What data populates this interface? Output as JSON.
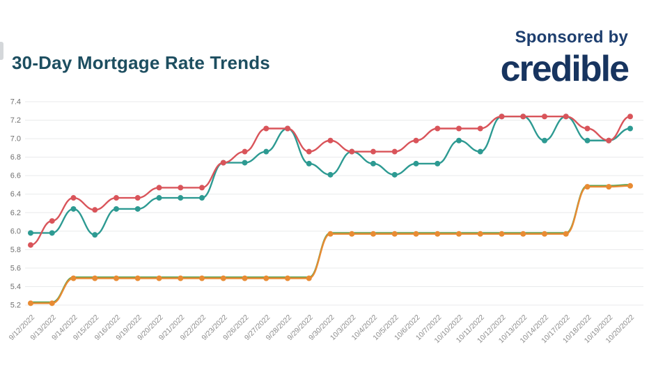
{
  "page": {
    "background": "#ffffff"
  },
  "header": {
    "title": "30-Day Mortgage Rate Trends",
    "title_color": "#1d4e60",
    "sponsored_by": "Sponsored by",
    "sponsor_name": "credible",
    "sponsor_color": "#17345f"
  },
  "chart_data": {
    "type": "line",
    "title": "30-Day Mortgage Rate Trends",
    "xlabel": "",
    "ylabel": "",
    "ylim": [
      5.2,
      7.4
    ],
    "yticks": [
      "7.4",
      "7.2",
      "7.0",
      "6.8",
      "6.6",
      "6.4",
      "6.2",
      "6.0",
      "5.8",
      "5.6",
      "5.4",
      "5.2"
    ],
    "grid": "horizontal",
    "gridline_color": "#e9eaeb",
    "ytick_label_color": "#6f6f6f",
    "xtick_label_color": "#8c8c8c",
    "legend": "none",
    "marker": "circle",
    "x_label_rotation": -45,
    "categories": [
      "9/12/2022",
      "9/13/2022",
      "9/14/2022",
      "9/15/2022",
      "9/16/2022",
      "9/19/2022",
      "9/20/2022",
      "9/21/2022",
      "9/22/2022",
      "9/23/2022",
      "9/26/2022",
      "9/27/2022",
      "9/28/2022",
      "9/29/2022",
      "9/30/2022",
      "10/3/2022",
      "10/4/2022",
      "10/5/2022",
      "10/6/2022",
      "10/7/2022",
      "10/10/2022",
      "10/11/2022",
      "10/12/2022",
      "10/13/2022",
      "10/14/2022",
      "10/17/2022",
      "10/18/2022",
      "10/19/2022",
      "10/20/2022"
    ],
    "series": [
      {
        "name": "green-underlay",
        "color": "#5ca14e",
        "values": [
          5.22,
          5.22,
          5.49,
          5.49,
          5.49,
          5.49,
          5.49,
          5.49,
          5.49,
          5.49,
          5.49,
          5.49,
          5.49,
          5.49,
          5.97,
          5.97,
          5.97,
          5.97,
          5.97,
          5.97,
          5.97,
          5.97,
          5.97,
          5.97,
          5.97,
          5.97,
          6.48,
          6.48,
          6.49
        ]
      },
      {
        "name": "orange",
        "color": "#e88b33",
        "values": [
          5.22,
          5.22,
          5.49,
          5.49,
          5.49,
          5.49,
          5.49,
          5.49,
          5.49,
          5.49,
          5.49,
          5.49,
          5.49,
          5.49,
          5.97,
          5.97,
          5.97,
          5.97,
          5.97,
          5.97,
          5.97,
          5.97,
          5.97,
          5.97,
          5.97,
          5.97,
          6.48,
          6.48,
          6.49
        ]
      },
      {
        "name": "teal",
        "color": "#2d9a92",
        "values": [
          5.98,
          5.98,
          6.24,
          5.96,
          6.24,
          6.24,
          6.36,
          6.36,
          6.36,
          6.74,
          6.74,
          6.86,
          7.11,
          6.73,
          6.61,
          6.86,
          6.73,
          6.61,
          6.73,
          6.73,
          6.98,
          6.86,
          7.24,
          7.24,
          6.98,
          7.24,
          6.98,
          6.98,
          7.11
        ]
      },
      {
        "name": "red",
        "color": "#d9545a",
        "values": [
          5.85,
          6.11,
          6.36,
          6.23,
          6.36,
          6.36,
          6.47,
          6.47,
          6.47,
          6.74,
          6.86,
          7.11,
          7.11,
          6.86,
          6.98,
          6.86,
          6.86,
          6.86,
          6.98,
          7.11,
          7.11,
          7.11,
          7.24,
          7.24,
          7.24,
          7.24,
          7.11,
          6.98,
          7.24
        ]
      }
    ]
  }
}
